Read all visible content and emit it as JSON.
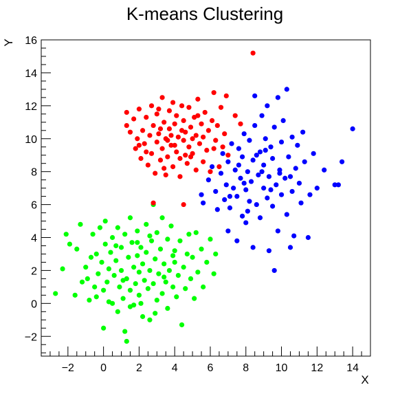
{
  "chart_data": {
    "type": "scatter",
    "title": "K-means Clustering",
    "xlabel": "X",
    "ylabel": "Y",
    "xlim": [
      -3.5,
      15
    ],
    "ylim": [
      -3.2,
      16
    ],
    "xticks": [
      -2,
      0,
      2,
      4,
      6,
      8,
      10,
      12,
      14
    ],
    "yticks": [
      -2,
      0,
      2,
      4,
      6,
      8,
      10,
      12,
      14,
      16
    ],
    "xtick_labels": [
      "−2",
      "0",
      "2",
      "4",
      "6",
      "8",
      "10",
      "12",
      "14"
    ],
    "ytick_labels": [
      "−2",
      "0",
      "2",
      "4",
      "6",
      "8",
      "10",
      "12",
      "14",
      "16"
    ],
    "grid": false,
    "colors": {
      "cluster-green": "#00ff00",
      "cluster-red": "#ff0000",
      "cluster-blue": "#0000ff"
    },
    "series": [
      {
        "color": "#00ff00",
        "points": [
          [
            -2.7,
            0.6
          ],
          [
            -2.3,
            2.1
          ],
          [
            -2.1,
            4.2
          ],
          [
            -1.9,
            3.6
          ],
          [
            -1.6,
            0.5
          ],
          [
            -1.5,
            3.3
          ],
          [
            -1.3,
            4.8
          ],
          [
            -1.2,
            1.3
          ],
          [
            -1.0,
            2.2
          ],
          [
            -0.9,
            1.5
          ],
          [
            -0.8,
            0.2
          ],
          [
            -0.7,
            2.8
          ],
          [
            -0.6,
            4.2
          ],
          [
            -0.5,
            1.0
          ],
          [
            -0.4,
            3.0
          ],
          [
            -0.3,
            1.8
          ],
          [
            -0.2,
            4.6
          ],
          [
            -0.1,
            2.5
          ],
          [
            0.0,
            0.8
          ],
          [
            0.0,
            -1.5
          ],
          [
            0.1,
            3.6
          ],
          [
            0.1,
            5.0
          ],
          [
            0.2,
            1.3
          ],
          [
            0.3,
            2.1
          ],
          [
            0.4,
            3.1
          ],
          [
            0.5,
            0.0
          ],
          [
            0.5,
            4.0
          ],
          [
            0.6,
            1.7
          ],
          [
            0.7,
            2.6
          ],
          [
            0.8,
            4.6
          ],
          [
            0.8,
            -0.5
          ],
          [
            0.9,
            1.0
          ],
          [
            1.0,
            3.4
          ],
          [
            1.0,
            2.0
          ],
          [
            1.1,
            0.3
          ],
          [
            1.2,
            4.2
          ],
          [
            1.2,
            -1.7
          ],
          [
            1.3,
            1.5
          ],
          [
            1.3,
            -2.3
          ],
          [
            1.4,
            2.8
          ],
          [
            1.5,
            0.8
          ],
          [
            1.5,
            5.2
          ],
          [
            1.6,
            3.7
          ],
          [
            1.7,
            2.2
          ],
          [
            1.7,
            -0.1
          ],
          [
            1.8,
            1.2
          ],
          [
            1.9,
            4.4
          ],
          [
            1.9,
            2.9
          ],
          [
            2.0,
            0.5
          ],
          [
            2.0,
            1.9
          ],
          [
            2.1,
            3.4
          ],
          [
            2.2,
            -0.8
          ],
          [
            2.2,
            2.4
          ],
          [
            2.3,
            1.4
          ],
          [
            2.4,
            4.8
          ],
          [
            2.4,
            3.1
          ],
          [
            2.5,
            0.9
          ],
          [
            2.6,
            2.0
          ],
          [
            2.6,
            -1.0
          ],
          [
            2.7,
            3.8
          ],
          [
            2.8,
            1.2
          ],
          [
            2.8,
            6.0
          ],
          [
            2.9,
            2.7
          ],
          [
            3.0,
            0.2
          ],
          [
            3.0,
            4.3
          ],
          [
            3.1,
            1.8
          ],
          [
            3.2,
            3.3
          ],
          [
            3.3,
            0.6
          ],
          [
            3.3,
            5.2
          ],
          [
            3.4,
            2.4
          ],
          [
            3.5,
            1.3
          ],
          [
            3.6,
            3.9
          ],
          [
            3.6,
            -0.3
          ],
          [
            3.7,
            2.0
          ],
          [
            3.8,
            4.7
          ],
          [
            3.9,
            1.0
          ],
          [
            4.0,
            3.2
          ],
          [
            4.0,
            2.5
          ],
          [
            4.1,
            0.4
          ],
          [
            4.2,
            1.7
          ],
          [
            4.3,
            3.8
          ],
          [
            4.4,
            -1.3
          ],
          [
            4.5,
            2.2
          ],
          [
            4.6,
            0.9
          ],
          [
            4.7,
            3.0
          ],
          [
            4.8,
            4.2
          ],
          [
            4.9,
            1.5
          ],
          [
            5.0,
            2.8
          ],
          [
            5.1,
            0.3
          ],
          [
            5.2,
            4.3
          ],
          [
            5.3,
            1.9
          ],
          [
            5.5,
            3.3
          ],
          [
            5.6,
            1.0
          ],
          [
            5.8,
            2.5
          ],
          [
            6.0,
            3.9
          ],
          [
            6.2,
            1.8
          ],
          [
            6.3,
            3.0
          ],
          [
            0.3,
            0.1
          ],
          [
            1.5,
            -0.2
          ],
          [
            2.1,
            0.0
          ],
          [
            0.7,
            3.5
          ],
          [
            1.9,
            3.7
          ],
          [
            3.4,
            1.6
          ],
          [
            2.6,
            4.1
          ],
          [
            1.1,
            1.4
          ],
          [
            -0.4,
            0.4
          ],
          [
            3.9,
            2.9
          ],
          [
            2.9,
            -0.6
          ]
        ]
      },
      {
        "color": "#ff0000",
        "points": [
          [
            1.3,
            11.6
          ],
          [
            1.3,
            10.8
          ],
          [
            1.5,
            10.4
          ],
          [
            1.7,
            11.2
          ],
          [
            1.8,
            9.4
          ],
          [
            1.9,
            10.0
          ],
          [
            2.0,
            11.8
          ],
          [
            2.1,
            8.8
          ],
          [
            2.2,
            10.5
          ],
          [
            2.3,
            9.7
          ],
          [
            2.4,
            11.3
          ],
          [
            2.5,
            8.4
          ],
          [
            2.6,
            10.2
          ],
          [
            2.7,
            12.0
          ],
          [
            2.7,
            9.1
          ],
          [
            2.8,
            10.8
          ],
          [
            2.9,
            7.9
          ],
          [
            3.0,
            9.8
          ],
          [
            3.0,
            11.5
          ],
          [
            3.1,
            10.3
          ],
          [
            3.2,
            8.7
          ],
          [
            3.3,
            12.5
          ],
          [
            3.3,
            9.4
          ],
          [
            3.4,
            11.0
          ],
          [
            3.5,
            10.0
          ],
          [
            3.5,
            7.8
          ],
          [
            3.6,
            8.9
          ],
          [
            3.7,
            11.7
          ],
          [
            3.7,
            10.6
          ],
          [
            3.8,
            9.6
          ],
          [
            3.9,
            12.2
          ],
          [
            3.9,
            8.3
          ],
          [
            4.0,
            10.9
          ],
          [
            4.1,
            9.2
          ],
          [
            4.1,
            11.4
          ],
          [
            4.2,
            10.1
          ],
          [
            4.3,
            7.7
          ],
          [
            4.3,
            8.8
          ],
          [
            4.4,
            12.0
          ],
          [
            4.5,
            9.9
          ],
          [
            4.5,
            11.1
          ],
          [
            4.6,
            10.4
          ],
          [
            4.7,
            8.5
          ],
          [
            4.8,
            9.5
          ],
          [
            4.8,
            11.9
          ],
          [
            4.9,
            10.7
          ],
          [
            5.0,
            9.1
          ],
          [
            5.1,
            11.3
          ],
          [
            5.2,
            8.1
          ],
          [
            5.2,
            10.2
          ],
          [
            5.3,
            12.4
          ],
          [
            5.4,
            9.7
          ],
          [
            5.5,
            10.9
          ],
          [
            5.6,
            8.6
          ],
          [
            5.7,
            11.6
          ],
          [
            5.8,
            9.3
          ],
          [
            5.9,
            10.5
          ],
          [
            6.0,
            8.0
          ],
          [
            6.1,
            11.1
          ],
          [
            6.2,
            12.8
          ],
          [
            6.3,
            9.9
          ],
          [
            6.4,
            10.8
          ],
          [
            6.5,
            8.3
          ],
          [
            6.6,
            11.9
          ],
          [
            6.7,
            9.5
          ],
          [
            6.8,
            10.3
          ],
          [
            6.9,
            12.6
          ],
          [
            7.0,
            9.0
          ],
          [
            7.4,
            11.4
          ],
          [
            7.7,
            10.9
          ],
          [
            8.4,
            15.2
          ],
          [
            2.8,
            6.1
          ],
          [
            4.5,
            6.0
          ],
          [
            3.2,
            10.6
          ],
          [
            4.6,
            9.0
          ],
          [
            3.8,
            10.2
          ],
          [
            5.0,
            10.0
          ],
          [
            4.0,
            9.6
          ],
          [
            3.6,
            9.9
          ],
          [
            4.4,
            10.5
          ],
          [
            2.4,
            9.2
          ],
          [
            5.6,
            10.1
          ],
          [
            3.1,
            11.8
          ],
          [
            4.9,
            8.9
          ],
          [
            2.0,
            9.6
          ],
          [
            6.2,
            9.4
          ],
          [
            3.4,
            8.2
          ],
          [
            5.3,
            11.4
          ]
        ]
      },
      {
        "color": "#0000ff",
        "points": [
          [
            5.5,
            6.6
          ],
          [
            5.6,
            6.1
          ],
          [
            5.9,
            7.5
          ],
          [
            6.1,
            8.3
          ],
          [
            6.3,
            6.8
          ],
          [
            6.4,
            5.7
          ],
          [
            6.6,
            7.9
          ],
          [
            6.7,
            9.1
          ],
          [
            6.8,
            6.3
          ],
          [
            6.9,
            7.2
          ],
          [
            7.0,
            8.6
          ],
          [
            7.0,
            4.4
          ],
          [
            7.1,
            5.8
          ],
          [
            7.2,
            9.7
          ],
          [
            7.3,
            7.0
          ],
          [
            7.4,
            8.1
          ],
          [
            7.5,
            6.5
          ],
          [
            7.5,
            3.8
          ],
          [
            7.6,
            9.4
          ],
          [
            7.7,
            7.6
          ],
          [
            7.8,
            5.3
          ],
          [
            7.8,
            8.9
          ],
          [
            7.9,
            10.3
          ],
          [
            8.0,
            6.9
          ],
          [
            8.0,
            4.9
          ],
          [
            8.1,
            8.0
          ],
          [
            8.2,
            9.9
          ],
          [
            8.2,
            6.2
          ],
          [
            8.3,
            7.4
          ],
          [
            8.4,
            3.4
          ],
          [
            8.4,
            8.7
          ],
          [
            8.5,
            10.8
          ],
          [
            8.5,
            12.6
          ],
          [
            8.6,
            6.0
          ],
          [
            8.7,
            7.8
          ],
          [
            8.8,
            9.2
          ],
          [
            8.8,
            5.2
          ],
          [
            8.9,
            11.4
          ],
          [
            9.0,
            7.0
          ],
          [
            9.0,
            8.4
          ],
          [
            9.1,
            10.0
          ],
          [
            9.2,
            6.4
          ],
          [
            9.2,
            12.0
          ],
          [
            9.3,
            3.2
          ],
          [
            9.3,
            7.7
          ],
          [
            9.4,
            9.5
          ],
          [
            9.5,
            5.9
          ],
          [
            9.5,
            8.8
          ],
          [
            9.6,
            2.0
          ],
          [
            9.6,
            10.7
          ],
          [
            9.7,
            7.2
          ],
          [
            9.8,
            4.4
          ],
          [
            9.8,
            12.5
          ],
          [
            9.9,
            8.1
          ],
          [
            10.0,
            9.8
          ],
          [
            10.0,
            6.6
          ],
          [
            10.1,
            11.1
          ],
          [
            10.2,
            7.6
          ],
          [
            10.3,
            13.0
          ],
          [
            10.3,
            5.4
          ],
          [
            10.4,
            8.9
          ],
          [
            10.5,
            3.4
          ],
          [
            10.6,
            10.1
          ],
          [
            10.6,
            6.8
          ],
          [
            10.7,
            4.1
          ],
          [
            10.8,
            8.2
          ],
          [
            10.9,
            9.6
          ],
          [
            11.0,
            7.3
          ],
          [
            11.1,
            6.1
          ],
          [
            11.2,
            10.4
          ],
          [
            11.3,
            8.6
          ],
          [
            11.5,
            4.0
          ],
          [
            11.6,
            6.6
          ],
          [
            11.8,
            9.1
          ],
          [
            12.0,
            7.0
          ],
          [
            12.4,
            8.1
          ],
          [
            13.0,
            7.2
          ],
          [
            13.2,
            7.2
          ],
          [
            13.4,
            8.6
          ],
          [
            14.0,
            10.6
          ],
          [
            7.1,
            6.5
          ],
          [
            7.9,
            7.3
          ],
          [
            8.6,
            9.0
          ],
          [
            9.4,
            6.9
          ],
          [
            8.1,
            5.6
          ],
          [
            9.9,
            7.9
          ],
          [
            8.9,
            8.0
          ],
          [
            7.6,
            8.4
          ],
          [
            10.5,
            7.7
          ],
          [
            9.1,
            9.3
          ]
        ]
      }
    ]
  }
}
